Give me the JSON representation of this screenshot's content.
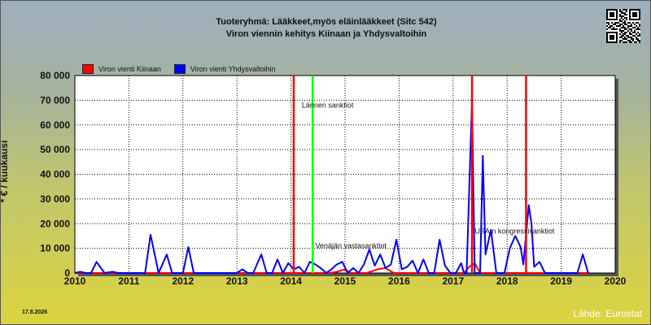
{
  "chart_data": {
    "type": "line",
    "title": "Tuoteryhmä: Lääkkeet,myös eläinlääkkeet (Sitc 542)",
    "subtitle": "Viron viennin kehitys  Kiinaan ja Yhdysvaltoihin",
    "ylabel": "* € / kuukausi",
    "xlabel": "",
    "xlim": [
      2010,
      2020
    ],
    "ylim": [
      0,
      80000
    ],
    "x_ticks": [
      "2010",
      "2011",
      "2012",
      "2013",
      "2014",
      "2015",
      "2016",
      "2017",
      "2018",
      "2019",
      "2020"
    ],
    "y_ticks": [
      "0",
      "10 000",
      "20 000",
      "30 000",
      "40 000",
      "50 000",
      "60 000",
      "70 000",
      "80 000"
    ],
    "y_tick_values": [
      0,
      10000,
      20000,
      30000,
      40000,
      50000,
      60000,
      70000,
      80000
    ],
    "grid": true,
    "legend_position": "top-left",
    "series": [
      {
        "name": "Viron vienti Kiinaan",
        "color": "#ff0000",
        "x": [
          2010.0,
          2014.0,
          2014.2,
          2014.4,
          2014.7,
          2014.85,
          2015.0,
          2015.1,
          2015.25,
          2015.4,
          2015.6,
          2015.75,
          2015.9,
          2016.1,
          2016.4,
          2016.8,
          2017.0,
          2017.2,
          2017.3,
          2017.4,
          2017.5,
          2019.0,
          2019.5
        ],
        "y": [
          0,
          0,
          0,
          0,
          0,
          500,
          1500,
          0,
          0,
          0,
          1500,
          2000,
          0,
          0,
          0,
          0,
          0,
          0,
          2500,
          4000,
          0,
          0,
          0
        ]
      },
      {
        "name": "Viron vienti Yhdysvaltoihin",
        "color": "#0000ff",
        "x": [
          2010.0,
          2010.1,
          2010.2,
          2010.3,
          2010.4,
          2010.55,
          2010.7,
          2010.8,
          2010.95,
          2011.1,
          2011.2,
          2011.3,
          2011.4,
          2011.55,
          2011.7,
          2011.8,
          2011.9,
          2012.0,
          2012.1,
          2012.2,
          2012.3,
          2012.5,
          2012.8,
          2013.0,
          2013.1,
          2013.2,
          2013.3,
          2013.45,
          2013.55,
          2013.65,
          2013.75,
          2013.85,
          2013.95,
          2014.05,
          2014.15,
          2014.25,
          2014.35,
          2014.45,
          2014.55,
          2014.65,
          2014.75,
          2014.85,
          2014.95,
          2015.05,
          2015.15,
          2015.25,
          2015.35,
          2015.45,
          2015.55,
          2015.65,
          2015.75,
          2015.85,
          2015.95,
          2016.05,
          2016.15,
          2016.25,
          2016.35,
          2016.45,
          2016.55,
          2016.65,
          2016.75,
          2016.85,
          2016.95,
          2017.05,
          2017.15,
          2017.2,
          2017.25,
          2017.35,
          2017.4,
          2017.45,
          2017.5,
          2017.55,
          2017.6,
          2017.7,
          2017.8,
          2017.95,
          2018.05,
          2018.15,
          2018.25,
          2018.3,
          2018.4,
          2018.45,
          2018.5,
          2018.6,
          2018.7,
          2018.8,
          2018.9,
          2019.0,
          2019.1,
          2019.2,
          2019.3,
          2019.4,
          2019.5
        ],
        "y": [
          0,
          500,
          0,
          0,
          4500,
          0,
          500,
          0,
          0,
          0,
          0,
          0,
          15500,
          0,
          7500,
          0,
          0,
          0,
          10500,
          0,
          0,
          0,
          0,
          0,
          1500,
          0,
          0,
          7500,
          0,
          0,
          5500,
          0,
          4000,
          1500,
          2500,
          0,
          4500,
          3500,
          2000,
          0,
          1500,
          3500,
          4500,
          0,
          2000,
          0,
          3500,
          9500,
          3000,
          7500,
          2000,
          3500,
          13500,
          1500,
          2500,
          5000,
          0,
          5500,
          0,
          0,
          13500,
          3000,
          0,
          0,
          4000,
          0,
          0,
          69500,
          0,
          0,
          0,
          47500,
          7500,
          17500,
          0,
          0,
          10000,
          15000,
          10500,
          3500,
          27500,
          20000,
          2500,
          4500,
          0,
          0,
          0,
          0,
          0,
          0,
          0,
          7500,
          0
        ]
      }
    ],
    "vertical_lines": [
      {
        "x": 2014.05,
        "color": "#ff0000"
      },
      {
        "x": 2014.4,
        "color": "#00ff00"
      },
      {
        "x": 2017.35,
        "color": "#ff0000"
      },
      {
        "x": 2018.35,
        "color": "#ff0000"
      }
    ],
    "annotations": [
      {
        "text": "Lännen sanktiot",
        "x": 2014.2,
        "y": 67000
      },
      {
        "text": "Venäjän vastasanktiot",
        "x": 2014.45,
        "y": 10000
      },
      {
        "text": "USA:n kongressisanktiot",
        "x": 2017.4,
        "y": 16000
      }
    ]
  },
  "footer": {
    "date": "17.8.2026",
    "source": "Lähde: Eurostat"
  },
  "qr_icon": "qr-code-icon"
}
